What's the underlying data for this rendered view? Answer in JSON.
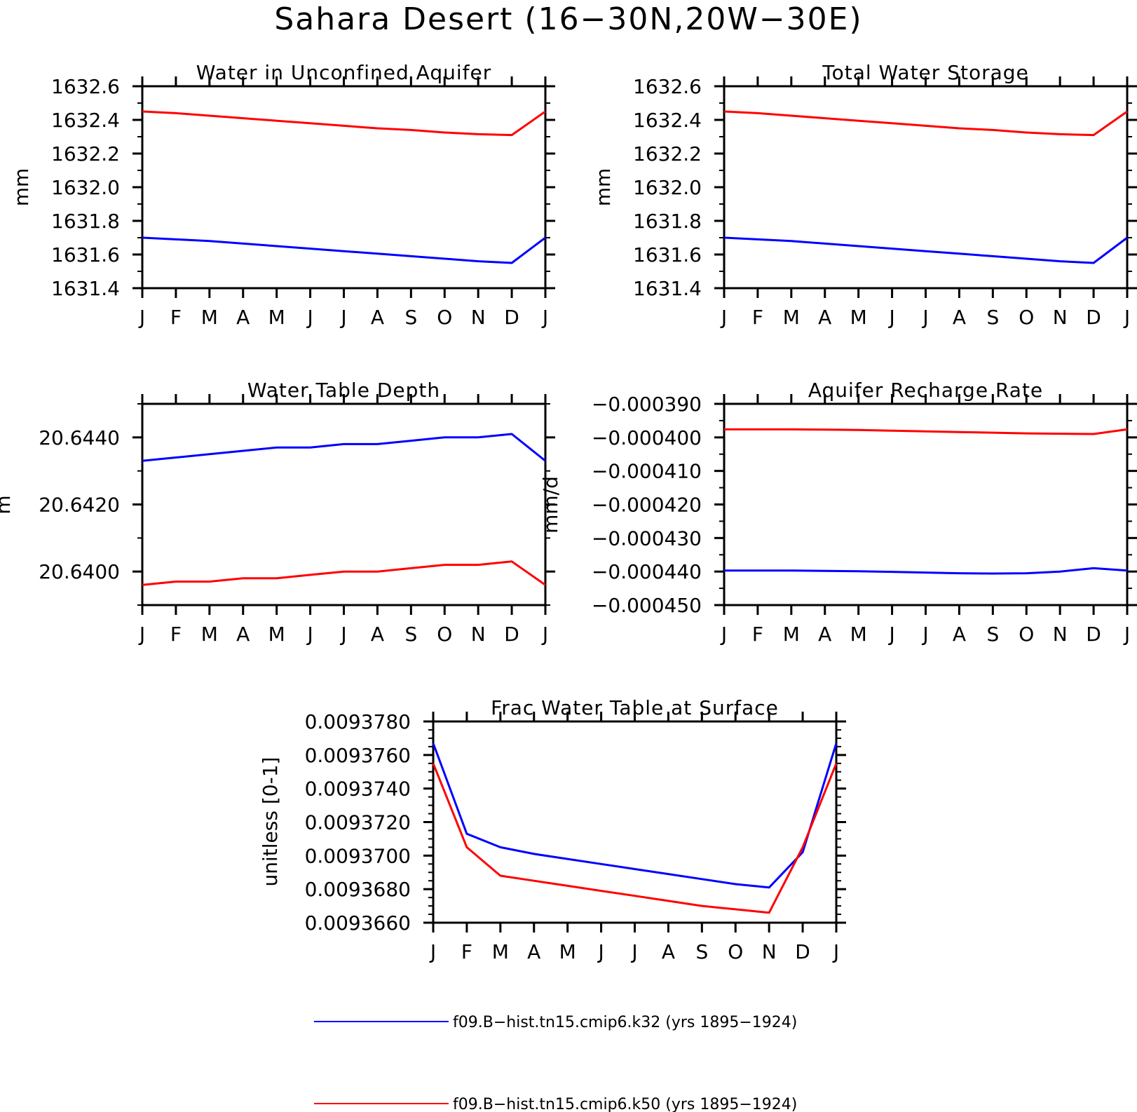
{
  "figure": {
    "title": "Sahara Desert (16-30N,20W-30E)",
    "months": [
      "J",
      "F",
      "M",
      "A",
      "M",
      "J",
      "J",
      "A",
      "S",
      "O",
      "N",
      "D",
      "J"
    ]
  },
  "legend": {
    "items": [
      {
        "label": "f09.B-hist.tn15.cmip6.k32 (yrs 1895-1924)",
        "color": "#0000ff"
      },
      {
        "label": "f09.B-hist.tn15.cmip6.k50 (yrs 1895-1924)",
        "color": "#ff0000"
      }
    ]
  },
  "chart_data": [
    {
      "type": "line",
      "title": "Water in Unconfined Aquifer",
      "ylabel": "mm",
      "ylim": [
        1631.4,
        1632.6
      ],
      "yticks": [
        "1631.4",
        "1631.6",
        "1631.8",
        "1632.0",
        "1632.2",
        "1632.4",
        "1632.6"
      ],
      "y_minor_step": 0.1,
      "series": [
        {
          "name": "f09.B-hist.tn15.cmip6.k32 (yrs 1895-1924)",
          "color": "#0000ff",
          "values": [
            1631.7,
            1631.69,
            1631.68,
            1631.665,
            1631.65,
            1631.635,
            1631.62,
            1631.605,
            1631.59,
            1631.575,
            1631.56,
            1631.55,
            1631.7
          ]
        },
        {
          "name": "f09.B-hist.tn15.cmip6.k50 (yrs 1895-1924)",
          "color": "#ff0000",
          "values": [
            1632.45,
            1632.44,
            1632.425,
            1632.41,
            1632.395,
            1632.38,
            1632.365,
            1632.35,
            1632.34,
            1632.325,
            1632.315,
            1632.31,
            1632.45
          ]
        }
      ]
    },
    {
      "type": "line",
      "title": "Total Water Storage",
      "ylabel": "mm",
      "ylim": [
        1631.4,
        1632.6
      ],
      "yticks": [
        "1631.4",
        "1631.6",
        "1631.8",
        "1632.0",
        "1632.2",
        "1632.4",
        "1632.6"
      ],
      "y_minor_step": 0.1,
      "series": [
        {
          "name": "f09.B-hist.tn15.cmip6.k32 (yrs 1895-1924)",
          "color": "#0000ff",
          "values": [
            1631.7,
            1631.69,
            1631.68,
            1631.665,
            1631.65,
            1631.635,
            1631.62,
            1631.605,
            1631.59,
            1631.575,
            1631.56,
            1631.55,
            1631.7
          ]
        },
        {
          "name": "f09.B-hist.tn15.cmip6.k50 (yrs 1895-1924)",
          "color": "#ff0000",
          "values": [
            1632.45,
            1632.44,
            1632.425,
            1632.41,
            1632.395,
            1632.38,
            1632.365,
            1632.35,
            1632.34,
            1632.325,
            1632.315,
            1632.31,
            1632.45
          ]
        }
      ]
    },
    {
      "type": "line",
      "title": "Water Table Depth",
      "ylabel": "m",
      "ylim": [
        20.639,
        20.645
      ],
      "yticks": [
        "20.6400",
        "20.6420",
        "20.6440"
      ],
      "ytick_values": [
        20.64,
        20.642,
        20.644
      ],
      "y_minor_step": 0.001,
      "series": [
        {
          "name": "f09.B-hist.tn15.cmip6.k32 (yrs 1895-1924)",
          "color": "#0000ff",
          "values": [
            20.6433,
            20.6434,
            20.6435,
            20.6436,
            20.6437,
            20.6437,
            20.6438,
            20.6438,
            20.6439,
            20.644,
            20.644,
            20.6441,
            20.6433
          ]
        },
        {
          "name": "f09.B-hist.tn15.cmip6.k50 (yrs 1895-1924)",
          "color": "#ff0000",
          "values": [
            20.6396,
            20.6397,
            20.6397,
            20.6398,
            20.6398,
            20.6399,
            20.64,
            20.64,
            20.6401,
            20.6402,
            20.6402,
            20.6403,
            20.6396
          ]
        }
      ]
    },
    {
      "type": "line",
      "title": "Aquifer Recharge Rate",
      "ylabel": "mm/d",
      "ylim": [
        -0.00045,
        -0.00039
      ],
      "yticks": [
        "-0.000450",
        "-0.000440",
        "-0.000430",
        "-0.000420",
        "-0.000410",
        "-0.000400",
        "-0.000390"
      ],
      "y_minor_step": 5e-06,
      "series": [
        {
          "name": "f09.B-hist.tn15.cmip6.k32 (yrs 1895-1924)",
          "color": "#0000ff",
          "values": [
            -0.0004397,
            -0.0004397,
            -0.0004397,
            -0.0004398,
            -0.0004399,
            -0.0004401,
            -0.0004403,
            -0.0004405,
            -0.0004406,
            -0.0004405,
            -0.00044,
            -0.000439,
            -0.0004397
          ]
        },
        {
          "name": "f09.B-hist.tn15.cmip6.k50 (yrs 1895-1924)",
          "color": "#ff0000",
          "values": [
            -0.0003976,
            -0.0003976,
            -0.0003976,
            -0.0003977,
            -0.0003978,
            -0.000398,
            -0.0003982,
            -0.0003984,
            -0.0003986,
            -0.0003988,
            -0.0003989,
            -0.000399,
            -0.0003976
          ]
        }
      ]
    },
    {
      "type": "line",
      "title": "Frac Water Table at Surface",
      "ylabel": "unitless [0-1]",
      "ylim": [
        0.009366,
        0.009378
      ],
      "yticks": [
        "0.0093660",
        "0.0093680",
        "0.0093700",
        "0.0093720",
        "0.0093740",
        "0.0093760",
        "0.0093780"
      ],
      "y_minor_step": 5e-07,
      "series": [
        {
          "name": "f09.B-hist.tn15.cmip6.k32 (yrs 1895-1924)",
          "color": "#0000ff",
          "values": [
            0.0093767,
            0.0093713,
            0.0093705,
            0.0093701,
            0.0093698,
            0.0093695,
            0.0093692,
            0.0093689,
            0.0093686,
            0.0093683,
            0.0093681,
            0.0093702,
            0.0093767
          ]
        },
        {
          "name": "f09.B-hist.tn15.cmip6.k50 (yrs 1895-1924)",
          "color": "#ff0000",
          "values": [
            0.0093755,
            0.0093705,
            0.0093688,
            0.0093685,
            0.0093682,
            0.0093679,
            0.0093676,
            0.0093673,
            0.009367,
            0.0093668,
            0.0093666,
            0.0093705,
            0.0093755
          ]
        }
      ]
    }
  ]
}
